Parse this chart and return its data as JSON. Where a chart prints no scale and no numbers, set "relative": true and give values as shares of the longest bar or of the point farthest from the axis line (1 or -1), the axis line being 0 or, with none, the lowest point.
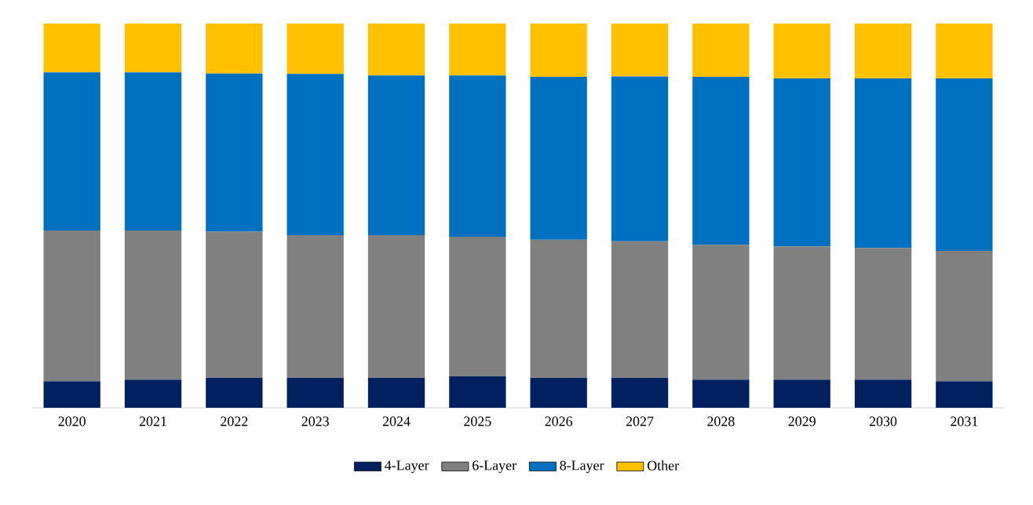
{
  "chart_data": {
    "type": "bar",
    "stacked": true,
    "relative": true,
    "legend": "bottom",
    "categories": [
      "2020",
      "2021",
      "2022",
      "2023",
      "2024",
      "2025",
      "2026",
      "2027",
      "2028",
      "2029",
      "2030",
      "2031"
    ],
    "series": [
      {
        "name": "4-Layer",
        "color": "#002060",
        "values": [
          0.069,
          0.073,
          0.078,
          0.078,
          0.078,
          0.082,
          0.078,
          0.078,
          0.073,
          0.073,
          0.073,
          0.069
        ]
      },
      {
        "name": "6-Layer",
        "color": "#808080",
        "values": [
          0.392,
          0.388,
          0.38,
          0.371,
          0.371,
          0.363,
          0.359,
          0.355,
          0.351,
          0.347,
          0.343,
          0.339
        ]
      },
      {
        "name": "8-Layer",
        "color": "#0070c0",
        "values": [
          0.412,
          0.412,
          0.412,
          0.42,
          0.416,
          0.42,
          0.424,
          0.429,
          0.437,
          0.437,
          0.441,
          0.449
        ]
      },
      {
        "name": "Other",
        "color": "#ffc000",
        "values": [
          0.127,
          0.127,
          0.13,
          0.131,
          0.135,
          0.135,
          0.139,
          0.138,
          0.139,
          0.143,
          0.143,
          0.143
        ]
      }
    ]
  }
}
